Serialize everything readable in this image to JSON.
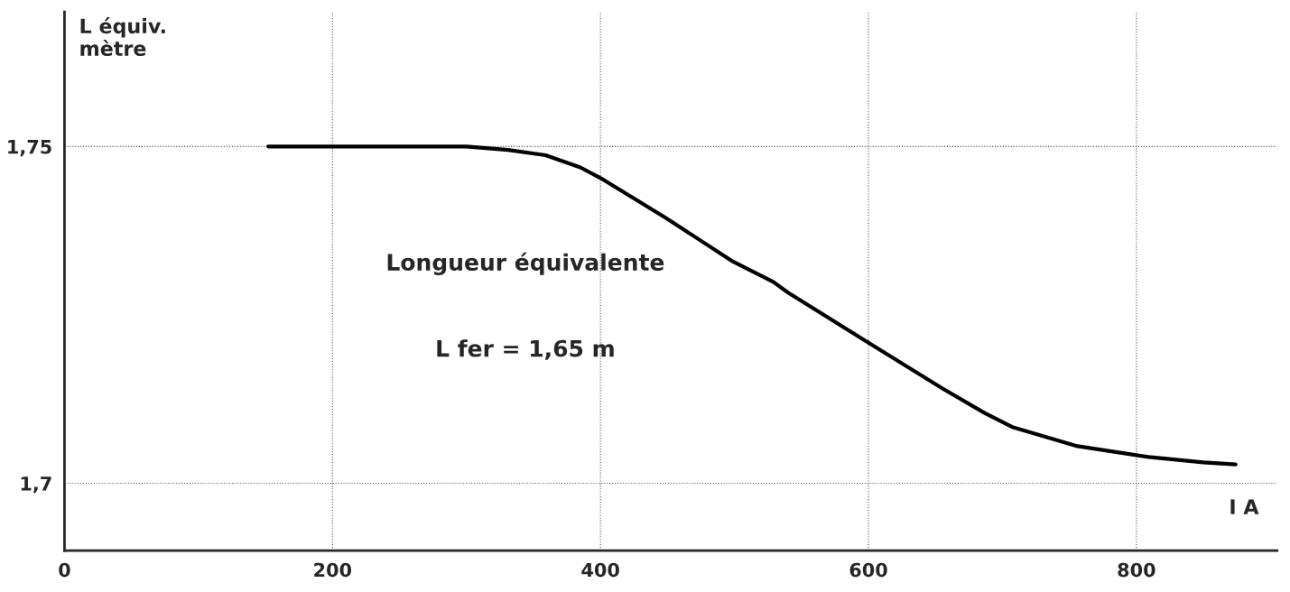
{
  "chart_data": {
    "type": "line",
    "xlabel": "I A",
    "ylabel": "L équiv.\nmètre",
    "annotations": [
      "Longueur équivalente",
      "L fer = 1,65 m"
    ],
    "x": [
      152,
      300,
      331,
      359,
      385,
      402,
      448,
      499,
      529,
      540,
      603,
      655,
      687,
      708,
      756,
      809,
      850,
      874
    ],
    "series": [
      {
        "color": "#000000",
        "values": [
          1.75,
          1.75,
          1.7495,
          1.7487,
          1.7469,
          1.7451,
          1.7395,
          1.7329,
          1.7299,
          1.7283,
          1.7205,
          1.7141,
          1.7104,
          1.7083,
          1.7055,
          1.7039,
          1.7031,
          1.7028
        ]
      }
    ],
    "xlim": [
      0,
      905
    ],
    "ylim": [
      1.69,
      1.77
    ],
    "xticks": [
      0,
      200,
      400,
      600,
      800
    ],
    "yticks": [
      {
        "value": 1.7,
        "label": "1,7"
      },
      {
        "value": 1.75,
        "label": "1,75"
      }
    ],
    "grid": true,
    "marker": "none",
    "line_style": "solid",
    "legend": false
  }
}
